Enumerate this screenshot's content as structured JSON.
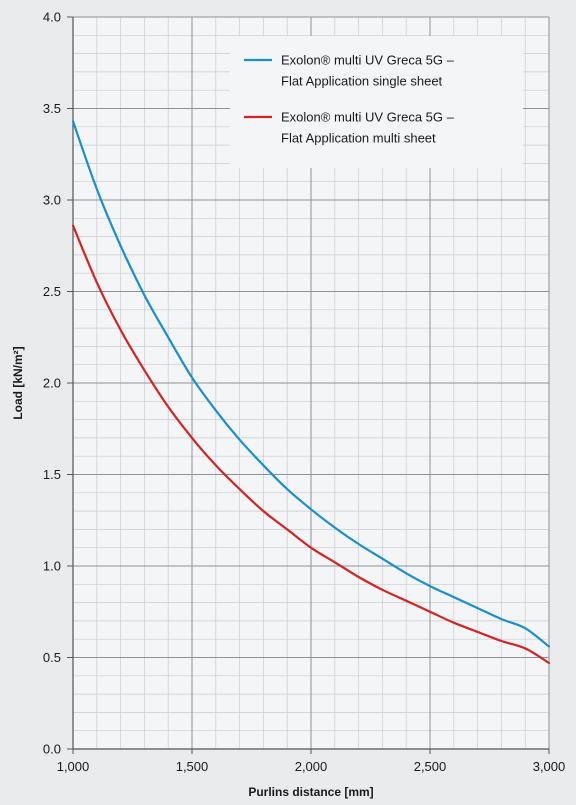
{
  "chart_data": {
    "type": "line",
    "xlabel": "Purlins distance [mm]",
    "ylabel": "Load [kN/m²]",
    "xlim": [
      1000,
      3000
    ],
    "ylim": [
      0,
      4
    ],
    "x_ticks": [
      1000,
      1500,
      2000,
      2500,
      3000
    ],
    "x_tick_labels": [
      "1,000",
      "1,500",
      "2,000",
      "2,500",
      "3,000"
    ],
    "y_ticks": [
      0,
      0.5,
      1,
      1.5,
      2,
      2.5,
      3,
      3.5,
      4
    ],
    "y_tick_labels": [
      "0.0",
      "0.5",
      "1.0",
      "1.5",
      "2.0",
      "2.5",
      "3.0",
      "3.5",
      "4.0"
    ],
    "grid": true,
    "minor_grid": true,
    "legend_position": "top-right",
    "series": [
      {
        "name_lines": [
          "Exolon® multi UV Greca 5G –",
          "Flat Application single sheet"
        ],
        "color": "#1a8fd0",
        "x": [
          1000,
          1100,
          1200,
          1300,
          1400,
          1500,
          1600,
          1700,
          1800,
          1900,
          2000,
          2100,
          2200,
          2300,
          2400,
          2500,
          2600,
          2700,
          2800,
          2900,
          3000
        ],
        "y": [
          3.43,
          3.06,
          2.75,
          2.48,
          2.25,
          2.03,
          1.85,
          1.69,
          1.55,
          1.42,
          1.31,
          1.21,
          1.12,
          1.04,
          0.96,
          0.89,
          0.83,
          0.77,
          0.71,
          0.66,
          0.56
        ]
      },
      {
        "name_lines": [
          "Exolon® multi UV Greca 5G –",
          "Flat Application multi sheet"
        ],
        "color": "#d42323",
        "x": [
          1000,
          1100,
          1200,
          1300,
          1400,
          1500,
          1600,
          1700,
          1800,
          1900,
          2000,
          2100,
          2200,
          2300,
          2400,
          2500,
          2600,
          2700,
          2800,
          2900,
          3000
        ],
        "y": [
          2.86,
          2.55,
          2.29,
          2.07,
          1.87,
          1.7,
          1.55,
          1.42,
          1.3,
          1.2,
          1.1,
          1.02,
          0.94,
          0.87,
          0.81,
          0.75,
          0.69,
          0.64,
          0.59,
          0.55,
          0.47
        ]
      }
    ]
  }
}
